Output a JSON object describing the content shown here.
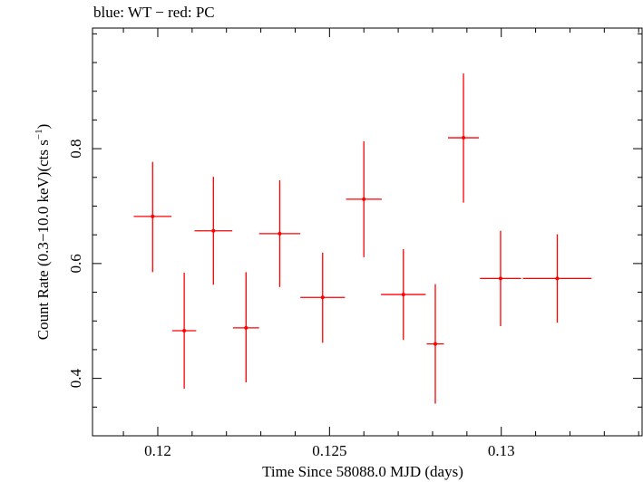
{
  "chart_data": {
    "type": "scatter",
    "title": "blue: WT − red: PC",
    "xlabel": "Time Since 58088.0 MJD (days)",
    "ylabel_main": "Count Rate (0.3−10.0 keV)(cts s",
    "ylabel_sup": "−1",
    "ylabel_end": ")",
    "xlim": [
      0.1181,
      0.1341
    ],
    "ylim": [
      0.3,
      1.01
    ],
    "x_ticks": [
      0.12,
      0.125,
      0.13
    ],
    "x_tick_labels": [
      "0.12",
      "0.125",
      "0.13"
    ],
    "y_ticks": [
      0.4,
      0.6,
      0.8
    ],
    "y_tick_labels": [
      "0.4",
      "0.6",
      "0.8"
    ],
    "grid": false,
    "series": [
      {
        "color": "#ff0000",
        "points": [
          {
            "x": 0.11985,
            "xerr": 0.00055,
            "y": 0.682,
            "yerr_lo": 0.097,
            "yerr_hi": 0.095
          },
          {
            "x": 0.12077,
            "xerr": 0.00035,
            "y": 0.483,
            "yerr_lo": 0.101,
            "yerr_hi": 0.101
          },
          {
            "x": 0.12162,
            "xerr": 0.00055,
            "y": 0.657,
            "yerr_lo": 0.094,
            "yerr_hi": 0.094
          },
          {
            "x": 0.12257,
            "xerr": 0.00038,
            "y": 0.488,
            "yerr_lo": 0.095,
            "yerr_hi": 0.097
          },
          {
            "x": 0.12355,
            "xerr": 0.0006,
            "y": 0.652,
            "yerr_lo": 0.093,
            "yerr_hi": 0.093
          },
          {
            "x": 0.1248,
            "xerr": 0.00065,
            "y": 0.541,
            "yerr_lo": 0.079,
            "yerr_hi": 0.078
          },
          {
            "x": 0.126,
            "xerr": 0.00052,
            "y": 0.712,
            "yerr_lo": 0.101,
            "yerr_hi": 0.101
          },
          {
            "x": 0.12715,
            "xerr": 0.00065,
            "y": 0.546,
            "yerr_lo": 0.079,
            "yerr_hi": 0.079
          },
          {
            "x": 0.12808,
            "xerr": 0.00025,
            "y": 0.46,
            "yerr_lo": 0.104,
            "yerr_hi": 0.104
          },
          {
            "x": 0.1289,
            "xerr": 0.00045,
            "y": 0.819,
            "yerr_lo": 0.113,
            "yerr_hi": 0.112
          },
          {
            "x": 0.12998,
            "xerr": 0.0006,
            "y": 0.574,
            "yerr_lo": 0.083,
            "yerr_hi": 0.083
          },
          {
            "x": 0.13163,
            "xerr": 0.001,
            "y": 0.574,
            "yerr_lo": 0.077,
            "yerr_hi": 0.077
          }
        ]
      }
    ]
  }
}
